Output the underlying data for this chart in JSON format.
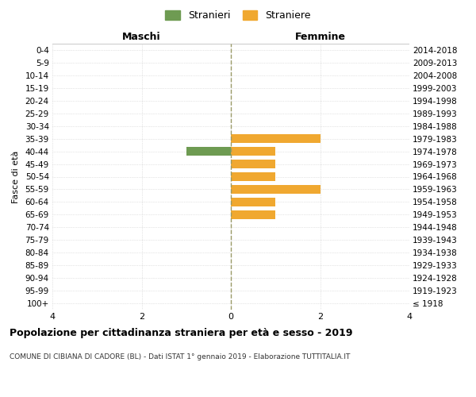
{
  "age_groups": [
    "100+",
    "95-99",
    "90-94",
    "85-89",
    "80-84",
    "75-79",
    "70-74",
    "65-69",
    "60-64",
    "55-59",
    "50-54",
    "45-49",
    "40-44",
    "35-39",
    "30-34",
    "25-29",
    "20-24",
    "15-19",
    "10-14",
    "5-9",
    "0-4"
  ],
  "birth_years": [
    "≤ 1918",
    "1919-1923",
    "1924-1928",
    "1929-1933",
    "1934-1938",
    "1939-1943",
    "1944-1948",
    "1949-1953",
    "1954-1958",
    "1959-1963",
    "1964-1968",
    "1969-1973",
    "1974-1978",
    "1979-1983",
    "1984-1988",
    "1989-1993",
    "1994-1998",
    "1999-2003",
    "2004-2008",
    "2009-2013",
    "2014-2018"
  ],
  "stranieri": [
    0,
    0,
    0,
    0,
    0,
    0,
    0,
    0,
    0,
    0,
    0,
    0,
    1,
    0,
    0,
    0,
    0,
    0,
    0,
    0,
    0
  ],
  "straniere": [
    0,
    0,
    0,
    0,
    0,
    0,
    0,
    1,
    1,
    2,
    1,
    1,
    1,
    2,
    0,
    0,
    0,
    0,
    0,
    0,
    0
  ],
  "stranieri_color": "#6e9b52",
  "straniere_color": "#f0a830",
  "xlabel_left": "Maschi",
  "xlabel_right": "Femmine",
  "ylabel_left": "Fasce di età",
  "title": "Popolazione per cittadinanza straniera per età e sesso - 2019",
  "subtitle": "COMUNE DI CIBIANA DI CADORE (BL) - Dati ISTAT 1° gennaio 2019 - Elaborazione TUTTITALIA.IT",
  "xlim": 4,
  "legend_stranieri": "Stranieri",
  "legend_straniere": "Straniere",
  "background_color": "#ffffff",
  "grid_color": "#cccccc",
  "zero_line_color": "#999966"
}
